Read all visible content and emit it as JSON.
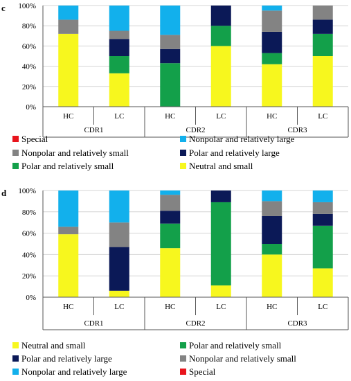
{
  "colors": {
    "Special": "#e8141c",
    "Nonpolar and relatively large": "#12b0ec",
    "Nonpolar and relatively small": "#838383",
    "Polar and relatively large": "#0b1957",
    "Polar and relatively small": "#13a04a",
    "Neutral and small": "#f7f71e"
  },
  "chart_data": [
    {
      "panel_label": "c",
      "type": "bar",
      "stacked": true,
      "ylim": [
        0,
        100
      ],
      "y_ticks": [
        "0%",
        "20%",
        "40%",
        "60%",
        "80%",
        "100%"
      ],
      "categories": [
        "HC",
        "LC",
        "HC",
        "LC",
        "HC",
        "LC"
      ],
      "groups": [
        "CDR1",
        "CDR2",
        "CDR3"
      ],
      "legend_position": "bottom",
      "legend": [
        "Special",
        "Nonpolar and relatively large",
        "Nonpolar and relatively small",
        "Polar and relatively large",
        "Polar and relatively small",
        "Neutral and small"
      ],
      "series": [
        {
          "name": "Neutral and small",
          "values": [
            72,
            33,
            0,
            60,
            42,
            50
          ]
        },
        {
          "name": "Polar and relatively small",
          "values": [
            0,
            17,
            43,
            20,
            11,
            22
          ]
        },
        {
          "name": "Polar and relatively large",
          "values": [
            0,
            17,
            14,
            20,
            21,
            14
          ]
        },
        {
          "name": "Nonpolar and relatively small",
          "values": [
            14,
            8,
            14,
            0,
            21,
            14
          ]
        },
        {
          "name": "Nonpolar and relatively large",
          "values": [
            14,
            25,
            29,
            0,
            5,
            0
          ]
        },
        {
          "name": "Special",
          "values": [
            0,
            0,
            0,
            0,
            0,
            0
          ]
        }
      ]
    },
    {
      "panel_label": "d",
      "type": "bar",
      "stacked": true,
      "ylim": [
        0,
        100
      ],
      "y_ticks": [
        "0%",
        "20%",
        "40%",
        "60%",
        "80%",
        "100%"
      ],
      "categories": [
        "HC",
        "LC",
        "HC",
        "LC",
        "HC",
        "LC"
      ],
      "groups": [
        "CDR1",
        "CDR2",
        "CDR3"
      ],
      "legend_position": "bottom",
      "legend": [
        "Neutral and small",
        "Polar and relatively small",
        "Polar and relatively large",
        "Nonpolar and relatively small",
        "Nonpolar and relatively large",
        "Special"
      ],
      "series": [
        {
          "name": "Neutral and small",
          "values": [
            59,
            6,
            46,
            11,
            40,
            27
          ]
        },
        {
          "name": "Polar and relatively small",
          "values": [
            0,
            0,
            23,
            78,
            10,
            40
          ]
        },
        {
          "name": "Polar and relatively large",
          "values": [
            0,
            41,
            12,
            11,
            26,
            11
          ]
        },
        {
          "name": "Nonpolar and relatively small",
          "values": [
            7,
            23,
            15,
            0,
            14,
            11
          ]
        },
        {
          "name": "Nonpolar and relatively large",
          "values": [
            34,
            30,
            4,
            0,
            10,
            11
          ]
        },
        {
          "name": "Special",
          "values": [
            0,
            0,
            0,
            0,
            0,
            0
          ]
        }
      ]
    }
  ]
}
